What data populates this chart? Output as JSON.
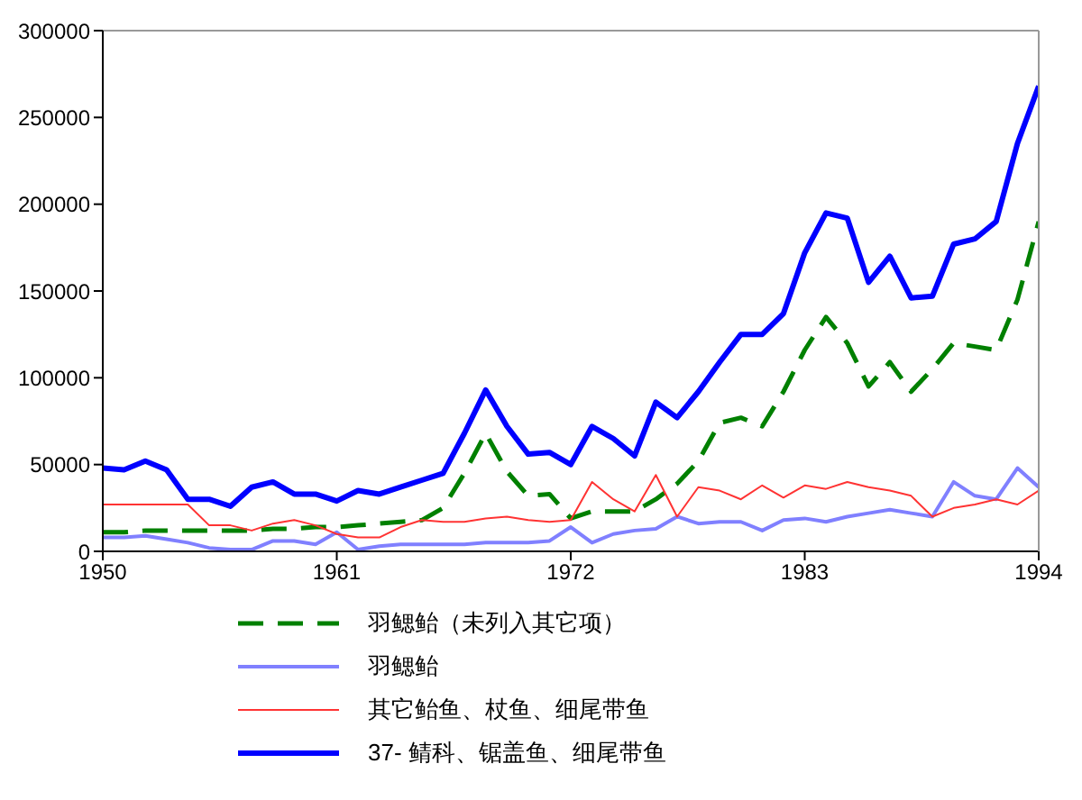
{
  "chart_data": {
    "type": "line",
    "x": [
      1950,
      1951,
      1952,
      1953,
      1954,
      1955,
      1956,
      1957,
      1958,
      1959,
      1960,
      1961,
      1962,
      1963,
      1964,
      1965,
      1966,
      1967,
      1968,
      1969,
      1970,
      1971,
      1972,
      1973,
      1974,
      1975,
      1976,
      1977,
      1978,
      1979,
      1980,
      1981,
      1982,
      1983,
      1984,
      1985,
      1986,
      1987,
      1988,
      1989,
      1990,
      1991,
      1992,
      1993,
      1994
    ],
    "xlim": [
      1950,
      1994
    ],
    "xticks": [
      1950,
      1961,
      1972,
      1983,
      1994
    ],
    "ylim": [
      0,
      300000
    ],
    "yticks": [
      0,
      50000,
      100000,
      150000,
      200000,
      250000,
      300000
    ],
    "grid": false,
    "legend": "bottom",
    "marker": "none",
    "series": [
      {
        "name": "羽鳃鲐（未列入其它项）",
        "color": "#008000",
        "line_style": "dashed",
        "values": [
          11000,
          11000,
          12000,
          12000,
          12000,
          12000,
          12000,
          12000,
          13000,
          13000,
          14000,
          14000,
          15000,
          16000,
          17000,
          18000,
          25000,
          45000,
          68000,
          46000,
          32000,
          33000,
          19000,
          23000,
          23000,
          23000,
          30000,
          39000,
          52000,
          74000,
          77000,
          72000,
          92000,
          116000,
          135000,
          120000,
          95000,
          109000,
          92000,
          105000,
          120000,
          118000,
          116000,
          145000,
          190000
        ]
      },
      {
        "name": "羽鳃鲐",
        "color": "#8080ff",
        "line_style": "solid",
        "values": [
          8000,
          8000,
          9000,
          7000,
          5000,
          2000,
          1000,
          1000,
          6000,
          6000,
          4000,
          11000,
          1000,
          3000,
          4000,
          4000,
          4000,
          4000,
          5000,
          5000,
          5000,
          6000,
          14000,
          5000,
          10000,
          12000,
          13000,
          20000,
          16000,
          17000,
          17000,
          12000,
          18000,
          19000,
          17000,
          20000,
          22000,
          24000,
          22000,
          20000,
          40000,
          32000,
          30000,
          48000,
          37000
        ]
      },
      {
        "name": "其它鲐鱼、杖鱼、细尾带鱼",
        "color": "#ff3333",
        "line_style": "solid",
        "values": [
          27000,
          27000,
          27000,
          27000,
          27000,
          15000,
          15000,
          12000,
          16000,
          18000,
          15000,
          10000,
          8000,
          8000,
          14000,
          18000,
          17000,
          17000,
          19000,
          20000,
          18000,
          17000,
          18000,
          40000,
          30000,
          23000,
          44000,
          20000,
          37000,
          35000,
          30000,
          38000,
          31000,
          38000,
          36000,
          40000,
          37000,
          35000,
          32000,
          20000,
          25000,
          27000,
          30000,
          27000,
          35000
        ]
      },
      {
        "name": "37- 鲭科、锯盖鱼、细尾带鱼",
        "color": "#0000ff",
        "line_style": "solid",
        "values": [
          48000,
          47000,
          52000,
          47000,
          30000,
          30000,
          26000,
          37000,
          40000,
          33000,
          33000,
          29000,
          35000,
          33000,
          37000,
          41000,
          45000,
          68000,
          93000,
          72000,
          56000,
          57000,
          50000,
          72000,
          65000,
          55000,
          86000,
          77000,
          92000,
          109000,
          125000,
          125000,
          137000,
          172000,
          195000,
          192000,
          155000,
          170000,
          146000,
          147000,
          177000,
          180000,
          190000,
          235000,
          268000
        ]
      }
    ]
  }
}
